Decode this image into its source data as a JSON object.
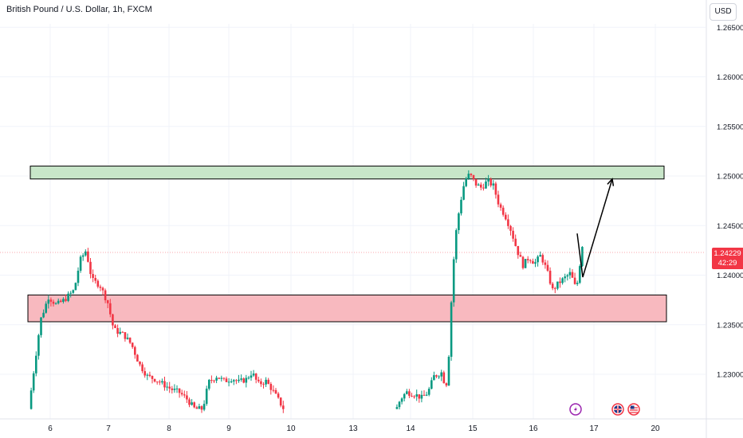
{
  "header": {
    "title": "British Pound / U.S. Dollar, 1h, FXCM",
    "currency": "USD"
  },
  "price_tag": {
    "price": "1.24229",
    "countdown": "42:29",
    "color": "#f23645"
  },
  "colors": {
    "up": "#089981",
    "down": "#f23645",
    "support_zone": "#f8b9bf",
    "resistance_zone": "#c8e6c9"
  },
  "chart_data": {
    "type": "candlestick",
    "title": "British Pound / U.S. Dollar, 1h, FXCM",
    "y_ticks": [
      "1.23000",
      "1.23500",
      "1.24000",
      "1.24500",
      "1.25000",
      "1.25500",
      "1.26000",
      "1.26500"
    ],
    "ylim": [
      1.2265,
      1.2675
    ],
    "x_ticks": [
      "6",
      "7",
      "8",
      "9",
      "10",
      "13",
      "14",
      "15",
      "16",
      "17",
      "20"
    ],
    "current_price": 1.24229,
    "zones": [
      {
        "name": "resistance",
        "low": 1.2497,
        "high": 1.251,
        "color": "#c8e6c9"
      },
      {
        "name": "support",
        "low": 1.2353,
        "high": 1.238,
        "color": "#f8b9bf"
      }
    ],
    "projection": [
      [
        1.2442,
        1.2398
      ],
      [
        1.2398,
        1.2497
      ]
    ],
    "price_path": [
      [
        0,
        1.2265
      ],
      [
        0.3,
        1.231
      ],
      [
        0.6,
        1.2355
      ],
      [
        1.0,
        1.2378
      ],
      [
        1.4,
        1.237
      ],
      [
        1.8,
        1.2375
      ],
      [
        2.3,
        1.2385
      ],
      [
        2.6,
        1.2415
      ],
      [
        2.9,
        1.2425
      ],
      [
        3.2,
        1.2395
      ],
      [
        3.6,
        1.239
      ],
      [
        4.0,
        1.2372
      ],
      [
        4.3,
        1.2345
      ],
      [
        4.8,
        1.234
      ],
      [
        5.2,
        1.233
      ],
      [
        5.6,
        1.231
      ],
      [
        6.0,
        1.2298
      ],
      [
        6.4,
        1.2295
      ],
      [
        6.8,
        1.229
      ],
      [
        7.2,
        1.2285
      ],
      [
        7.6,
        1.2282
      ],
      [
        8.0,
        1.2275
      ],
      [
        8.4,
        1.2265
      ],
      [
        8.8,
        1.2265
      ],
      [
        9.1,
        1.2292
      ],
      [
        9.5,
        1.2298
      ],
      [
        9.9,
        1.2293
      ],
      [
        10.3,
        1.2296
      ],
      [
        10.6,
        1.2292
      ],
      [
        11.0,
        1.2295
      ],
      [
        11.3,
        1.2302
      ],
      [
        11.6,
        1.229
      ],
      [
        12.0,
        1.2293
      ],
      [
        12.3,
        1.2285
      ],
      [
        12.6,
        1.2275
      ],
      [
        12.9,
        1.2265
      ],
      [
        18.6,
        1.2265
      ],
      [
        18.8,
        1.2275
      ],
      [
        19.1,
        1.2282
      ],
      [
        19.5,
        1.228
      ],
      [
        19.9,
        1.2276
      ],
      [
        20.2,
        1.2282
      ],
      [
        20.5,
        1.2298
      ],
      [
        20.9,
        1.2302
      ],
      [
        21.1,
        1.2285
      ],
      [
        21.25,
        1.232
      ],
      [
        21.45,
        1.2405
      ],
      [
        21.65,
        1.245
      ],
      [
        21.85,
        1.2475
      ],
      [
        22.05,
        1.2495
      ],
      [
        22.3,
        1.2502
      ],
      [
        22.6,
        1.2492
      ],
      [
        22.9,
        1.2488
      ],
      [
        23.2,
        1.2495
      ],
      [
        23.5,
        1.249
      ],
      [
        23.8,
        1.247
      ],
      [
        24.1,
        1.246
      ],
      [
        24.4,
        1.2445
      ],
      [
        24.7,
        1.2425
      ],
      [
        25.0,
        1.241
      ],
      [
        25.3,
        1.2418
      ],
      [
        25.6,
        1.2412
      ],
      [
        25.9,
        1.242
      ],
      [
        26.2,
        1.2405
      ],
      [
        26.5,
        1.2385
      ],
      [
        26.8,
        1.2392
      ],
      [
        27.1,
        1.2397
      ],
      [
        27.4,
        1.2402
      ],
      [
        27.7,
        1.2385
      ],
      [
        28.0,
        1.243
      ],
      [
        28.1,
        1.2423
      ]
    ]
  }
}
